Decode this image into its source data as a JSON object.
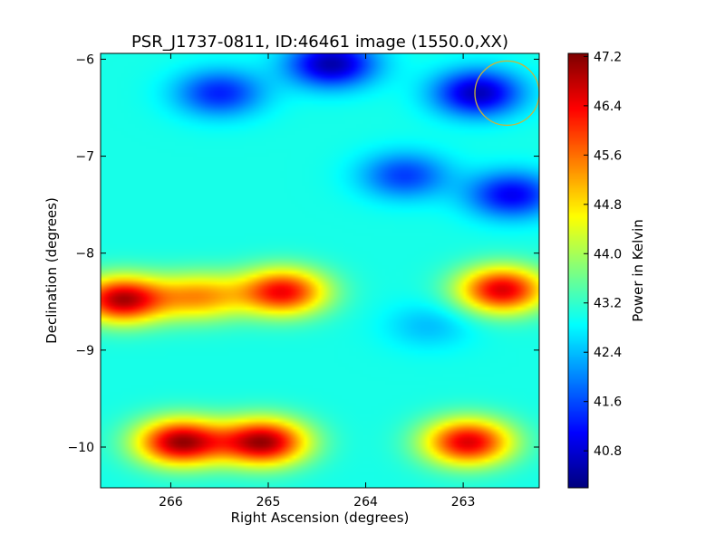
{
  "chart_data": {
    "type": "heatmap",
    "title": "PSR_J1737-0811, ID:46461 image (1550.0,XX)",
    "xlabel": "Right Ascension (degrees)",
    "ylabel": "Declination (degrees)",
    "colorbar_label": "Power in Kelvin",
    "colormap": "jet",
    "xlim": [
      266.72,
      262.22
    ],
    "ylim": [
      -10.42,
      -5.94
    ],
    "x_ticks": [
      266,
      265,
      264,
      263
    ],
    "x_tick_labels": [
      "266",
      "265",
      "264",
      "263"
    ],
    "y_ticks": [
      -6,
      -7,
      -8,
      -9,
      -10
    ],
    "y_tick_labels": [
      "−6",
      "−7",
      "−8",
      "−9",
      "−10"
    ],
    "color_range": [
      40.2,
      47.25
    ],
    "colorbar_ticks": [
      47.2,
      46.4,
      45.6,
      44.8,
      44.0,
      43.2,
      42.4,
      41.6,
      40.8
    ],
    "colorbar_tick_labels": [
      "47.2",
      "46.4",
      "45.6",
      "44.8",
      "44.0",
      "43.2",
      "42.4",
      "41.6",
      "40.8"
    ],
    "background_level": 43.0,
    "features": [
      {
        "ra": 266.5,
        "dec": -8.48,
        "value": 46.9
      },
      {
        "ra": 265.7,
        "dec": -8.45,
        "value": 45.2
      },
      {
        "ra": 264.85,
        "dec": -8.4,
        "value": 46.4
      },
      {
        "ra": 262.6,
        "dec": -8.38,
        "value": 46.6
      },
      {
        "ra": 265.9,
        "dec": -9.95,
        "value": 47.0
      },
      {
        "ra": 265.05,
        "dec": -9.95,
        "value": 47.0
      },
      {
        "ra": 262.95,
        "dec": -9.95,
        "value": 46.6
      },
      {
        "ra": 264.35,
        "dec": -6.05,
        "value": 40.5
      },
      {
        "ra": 262.85,
        "dec": -6.35,
        "value": 40.6
      },
      {
        "ra": 262.5,
        "dec": -7.4,
        "value": 41.0
      },
      {
        "ra": 263.6,
        "dec": -7.2,
        "value": 41.5
      },
      {
        "ra": 265.5,
        "dec": -6.35,
        "value": 41.3
      },
      {
        "ra": 263.35,
        "dec": -8.75,
        "value": 42.4
      }
    ],
    "annotations": [
      {
        "type": "circle",
        "ra": 262.55,
        "dec": -6.35,
        "radius_deg": 0.33,
        "color": "#c8b43c"
      }
    ]
  }
}
